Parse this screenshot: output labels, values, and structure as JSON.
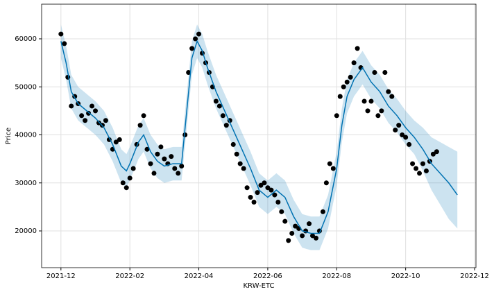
{
  "chart_data": {
    "type": "line",
    "xlabel": "KRW-ETC",
    "ylabel": "Price",
    "grid": true,
    "xlim": [
      -0.56,
      12.04
    ],
    "xticks": [
      {
        "value": 0,
        "label": "2021-12"
      },
      {
        "value": 2,
        "label": "2022-02"
      },
      {
        "value": 4,
        "label": "2022-04"
      },
      {
        "value": 6,
        "label": "2022-06"
      },
      {
        "value": 8,
        "label": "2022-08"
      },
      {
        "value": 10,
        "label": "2022-10"
      },
      {
        "value": 12,
        "label": "2022-12"
      }
    ],
    "ylim": [
      12350,
      67220
    ],
    "yticks": [
      20000,
      30000,
      40000,
      50000,
      60000
    ],
    "x": [
      0,
      0.15,
      0.3,
      0.5,
      0.75,
      1,
      1.25,
      1.5,
      1.75,
      1.9,
      2,
      2.25,
      2.4,
      2.6,
      2.8,
      3,
      3.25,
      3.5,
      3.65,
      3.8,
      3.95,
      4.1,
      4.25,
      4.5,
      4.75,
      5,
      5.25,
      5.5,
      5.75,
      6,
      6.25,
      6.5,
      6.75,
      7,
      7.25,
      7.5,
      7.75,
      8,
      8.15,
      8.3,
      8.5,
      8.75,
      9,
      9.25,
      9.5,
      9.75,
      10,
      10.25,
      10.5,
      10.75,
      11,
      11.25,
      11.5
    ],
    "series": [
      {
        "color": "#0072B2",
        "band_color": "#0072B2",
        "values": [
          59500,
          55000,
          49000,
          46500,
          45000,
          43500,
          41500,
          38000,
          33500,
          32500,
          34000,
          38500,
          40000,
          36500,
          34500,
          33500,
          34000,
          34000,
          45000,
          56000,
          59500,
          57500,
          54000,
          49000,
          45000,
          41000,
          37000,
          33000,
          28500,
          27000,
          28500,
          27000,
          23000,
          20000,
          19500,
          19500,
          24000,
          33000,
          42000,
          48000,
          51500,
          54000,
          51000,
          49000,
          46000,
          44000,
          41500,
          39500,
          37000,
          34000,
          32000,
          30000,
          27500
        ],
        "lower": [
          56000,
          51500,
          45500,
          43000,
          41500,
          40000,
          38000,
          34500,
          30000,
          29000,
          30500,
          35000,
          36500,
          33000,
          31000,
          30000,
          30500,
          30500,
          41500,
          52500,
          56000,
          54000,
          50500,
          45500,
          41500,
          37500,
          33500,
          29500,
          25000,
          23500,
          25000,
          23500,
          19500,
          16500,
          16000,
          16000,
          20500,
          29500,
          38500,
          44500,
          48000,
          50500,
          47500,
          45500,
          42500,
          40500,
          38000,
          36000,
          32500,
          28500,
          25500,
          22500,
          20500
        ],
        "upper": [
          63000,
          58500,
          52500,
          50000,
          48500,
          47000,
          45000,
          41500,
          37000,
          36000,
          37500,
          42000,
          43500,
          40000,
          38000,
          37000,
          37500,
          37500,
          48500,
          59500,
          63000,
          61000,
          57500,
          52500,
          48500,
          44500,
          40500,
          36500,
          32000,
          30500,
          32000,
          30500,
          26500,
          23500,
          23000,
          23000,
          27500,
          36500,
          45500,
          51500,
          55000,
          57500,
          54500,
          52500,
          49500,
          47500,
          45000,
          43000,
          41500,
          39500,
          38500,
          37500,
          36500
        ]
      }
    ],
    "scatter": {
      "color": "#000000",
      "x": [
        0,
        0.1,
        0.2,
        0.3,
        0.4,
        0.5,
        0.6,
        0.7,
        0.8,
        0.9,
        1,
        1.1,
        1.2,
        1.3,
        1.4,
        1.5,
        1.6,
        1.7,
        1.8,
        1.9,
        2,
        2.1,
        2.2,
        2.3,
        2.4,
        2.5,
        2.6,
        2.7,
        2.8,
        2.9,
        3,
        3.1,
        3.2,
        3.3,
        3.4,
        3.5,
        3.6,
        3.7,
        3.8,
        3.9,
        4,
        4.1,
        4.2,
        4.3,
        4.4,
        4.5,
        4.6,
        4.7,
        4.8,
        4.9,
        5,
        5.1,
        5.2,
        5.3,
        5.4,
        5.5,
        5.6,
        5.7,
        5.8,
        5.9,
        6,
        6.1,
        6.2,
        6.3,
        6.4,
        6.5,
        6.6,
        6.7,
        6.8,
        6.9,
        7,
        7.1,
        7.2,
        7.3,
        7.4,
        7.5,
        7.6,
        7.7,
        7.8,
        7.9,
        8,
        8.1,
        8.2,
        8.3,
        8.4,
        8.5,
        8.6,
        8.7,
        8.8,
        8.9,
        9,
        9.1,
        9.2,
        9.3,
        9.4,
        9.5,
        9.6,
        9.7,
        9.8,
        9.9,
        10,
        10.1,
        10.2,
        10.3,
        10.4,
        10.5,
        10.6,
        10.7,
        10.8,
        10.9
      ],
      "values": [
        61000,
        59000,
        52000,
        46000,
        48000,
        46500,
        44000,
        43000,
        44500,
        46000,
        45000,
        42500,
        42000,
        43000,
        39000,
        37000,
        38500,
        39000,
        30000,
        29000,
        31000,
        33000,
        38000,
        42000,
        44000,
        37000,
        34000,
        32000,
        36000,
        37500,
        35000,
        34000,
        35500,
        33000,
        32000,
        33500,
        40000,
        53000,
        58000,
        60000,
        61000,
        57000,
        55000,
        53000,
        50000,
        47000,
        46000,
        44000,
        42000,
        43000,
        38000,
        36000,
        34000,
        33000,
        29000,
        27000,
        26000,
        28000,
        29500,
        30000,
        29000,
        28500,
        27500,
        26000,
        24000,
        22000,
        18000,
        19500,
        21000,
        20500,
        19000,
        20000,
        21500,
        19000,
        18500,
        20000,
        24000,
        30000,
        34000,
        33000,
        44000,
        48000,
        50000,
        51000,
        52000,
        55000,
        58000,
        54000,
        47000,
        45000,
        47000,
        53000,
        44000,
        45000,
        53000,
        49000,
        48000,
        41000,
        42000,
        40000,
        39500,
        38000,
        34000,
        33000,
        32000,
        34000,
        32500,
        34500,
        36000,
        36500
      ]
    }
  }
}
